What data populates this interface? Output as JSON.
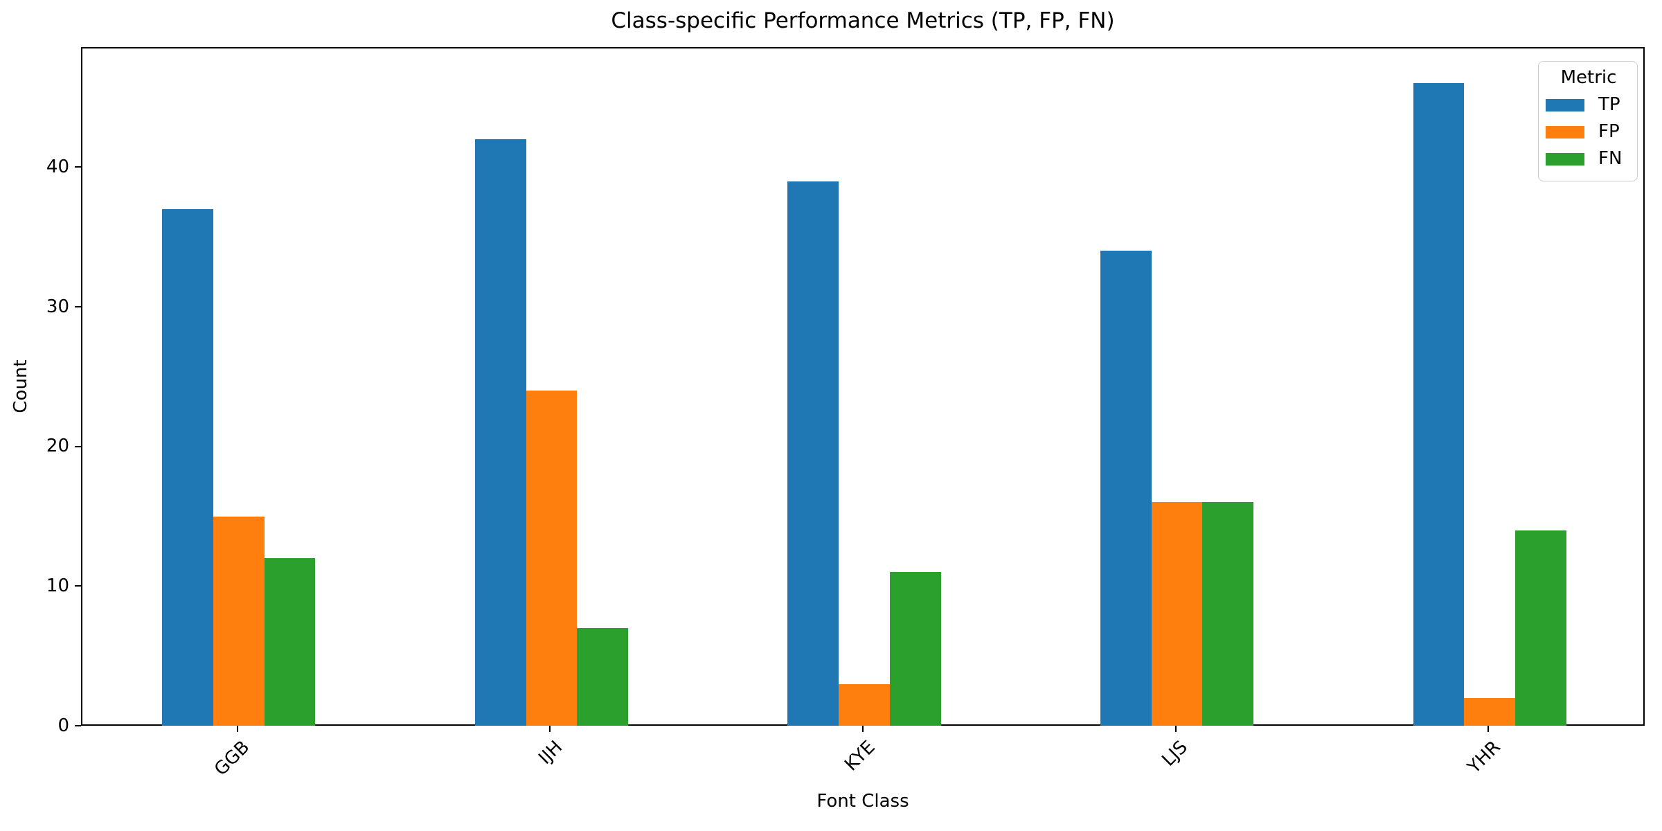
{
  "chart_data": {
    "type": "bar",
    "title": "Class-specific Performance Metrics (TP, FP, FN)",
    "xlabel": "Font Class",
    "ylabel": "Count",
    "categories": [
      "GGB",
      "IJH",
      "KYE",
      "LJS",
      "YHR"
    ],
    "series": [
      {
        "name": "TP",
        "color": "#1f77b4",
        "values": [
          37,
          42,
          39,
          34,
          46
        ]
      },
      {
        "name": "FP",
        "color": "#ff7f0e",
        "values": [
          15,
          24,
          3,
          16,
          2
        ]
      },
      {
        "name": "FN",
        "color": "#2ca02c",
        "values": [
          12,
          7,
          11,
          16,
          14
        ]
      }
    ],
    "yticks": [
      0,
      10,
      20,
      30,
      40
    ],
    "ylim": [
      0,
      48.6
    ],
    "xtick_rotation": 45,
    "grid": false,
    "legend": {
      "title": "Metric",
      "position": "upper right"
    },
    "axis_color": "#000000",
    "text_color": "#000000",
    "background": "#ffffff"
  }
}
